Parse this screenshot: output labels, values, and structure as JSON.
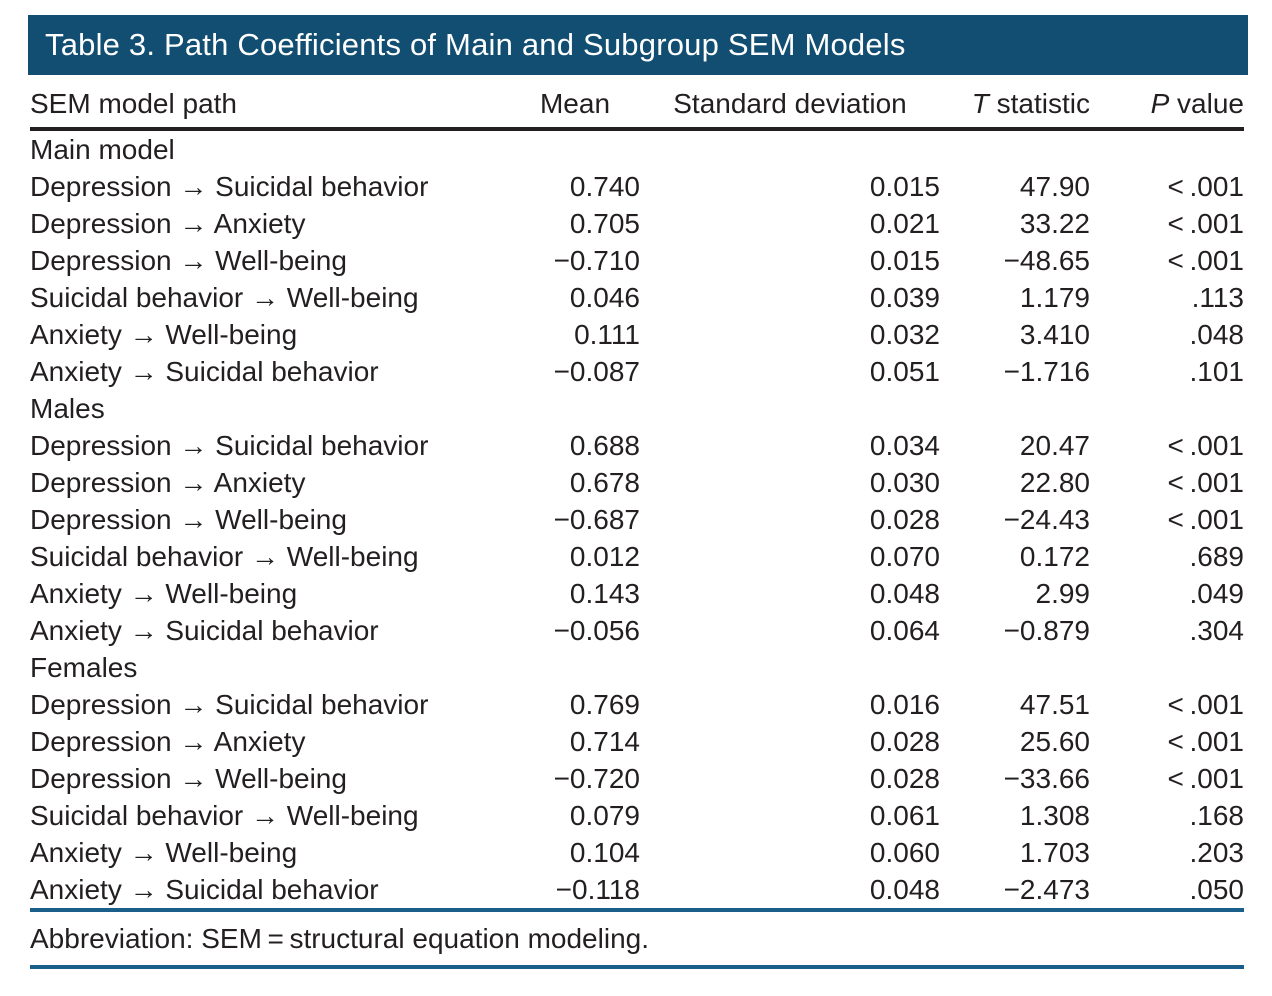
{
  "table": {
    "title": "Table 3. Path Coefficients of Main and Subgroup SEM Models",
    "columns": {
      "path": "SEM model path",
      "mean": "Mean",
      "sd": "Standard deviation",
      "t_italic": "T",
      "t_rest": " statistic",
      "p_italic": "P",
      "p_rest": " value"
    },
    "sections": [
      {
        "label": "Main model",
        "rows": [
          {
            "path": "Depression → Suicidal behavior",
            "mean": "0.740",
            "sd": "0.015",
            "t": "47.90",
            "p": "< .001"
          },
          {
            "path": "Depression → Anxiety",
            "mean": "0.705",
            "sd": "0.021",
            "t": "33.22",
            "p": "< .001"
          },
          {
            "path": "Depression → Well-being",
            "mean": "−0.710",
            "sd": "0.015",
            "t": "−48.65",
            "p": "< .001"
          },
          {
            "path": "Suicidal behavior → Well-being",
            "mean": "0.046",
            "sd": "0.039",
            "t": "1.179",
            "p": ".113"
          },
          {
            "path": "Anxiety → Well-being",
            "mean": "0.111",
            "sd": "0.032",
            "t": "3.410",
            "p": ".048"
          },
          {
            "path": "Anxiety → Suicidal behavior",
            "mean": "−0.087",
            "sd": "0.051",
            "t": "−1.716",
            "p": ".101"
          }
        ]
      },
      {
        "label": "Males",
        "rows": [
          {
            "path": "Depression → Suicidal behavior",
            "mean": "0.688",
            "sd": "0.034",
            "t": "20.47",
            "p": "< .001"
          },
          {
            "path": "Depression → Anxiety",
            "mean": "0.678",
            "sd": "0.030",
            "t": "22.80",
            "p": "< .001"
          },
          {
            "path": "Depression → Well-being",
            "mean": "−0.687",
            "sd": "0.028",
            "t": "−24.43",
            "p": "< .001"
          },
          {
            "path": "Suicidal behavior → Well-being",
            "mean": "0.012",
            "sd": "0.070",
            "t": "0.172",
            "p": ".689"
          },
          {
            "path": "Anxiety → Well-being",
            "mean": "0.143",
            "sd": "0.048",
            "t": "2.99",
            "p": ".049"
          },
          {
            "path": "Anxiety → Suicidal behavior",
            "mean": "−0.056",
            "sd": "0.064",
            "t": "−0.879",
            "p": ".304"
          }
        ]
      },
      {
        "label": "Females",
        "rows": [
          {
            "path": "Depression → Suicidal behavior",
            "mean": "0.769",
            "sd": "0.016",
            "t": "47.51",
            "p": "< .001"
          },
          {
            "path": "Depression → Anxiety",
            "mean": "0.714",
            "sd": "0.028",
            "t": "25.60",
            "p": "< .001"
          },
          {
            "path": "Depression → Well-being",
            "mean": "−0.720",
            "sd": "0.028",
            "t": "−33.66",
            "p": "< .001"
          },
          {
            "path": "Suicidal behavior → Well-being",
            "mean": "0.079",
            "sd": "0.061",
            "t": "1.308",
            "p": ".168"
          },
          {
            "path": "Anxiety → Well-being",
            "mean": "0.104",
            "sd": "0.060",
            "t": "1.703",
            "p": ".203"
          },
          {
            "path": "Anxiety → Suicidal behavior",
            "mean": "−0.118",
            "sd": "0.048",
            "t": "−2.473",
            "p": ".050"
          }
        ]
      }
    ],
    "footnote": "Abbreviation: SEM = structural equation modeling.",
    "colors": {
      "title_bar_bg": "#124e72",
      "title_text": "#ffffff",
      "body_text": "#231f20",
      "header_rule": "#231f20",
      "blue_rule": "#1a5f8a"
    }
  }
}
